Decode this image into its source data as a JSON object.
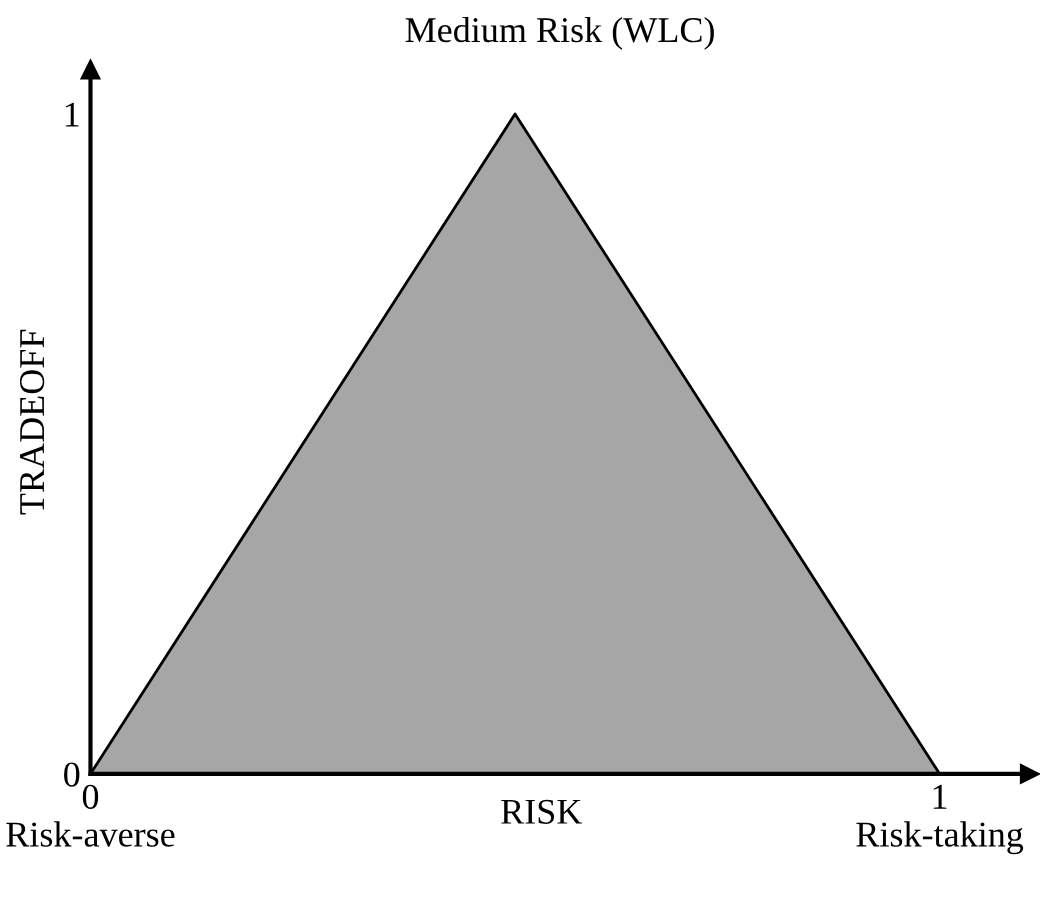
{
  "chart_data": {
    "type": "area",
    "title": "Medium Risk (WLC)",
    "xlabel": "RISK",
    "ylabel": "TRADEOFF",
    "x": [
      0,
      0.5,
      1
    ],
    "series": [
      {
        "color": "#a6a6a6",
        "values": [
          0,
          1,
          0
        ]
      }
    ],
    "xlim": [
      0,
      1.106
    ],
    "ylim": [
      0,
      1.067
    ],
    "xticks": [
      {
        "value": 0,
        "label": "0\nRisk-averse"
      },
      {
        "value": 1,
        "label": "1\nRisk-taking"
      }
    ],
    "yticks": [
      0,
      1
    ],
    "grid": false,
    "legend": false
  }
}
